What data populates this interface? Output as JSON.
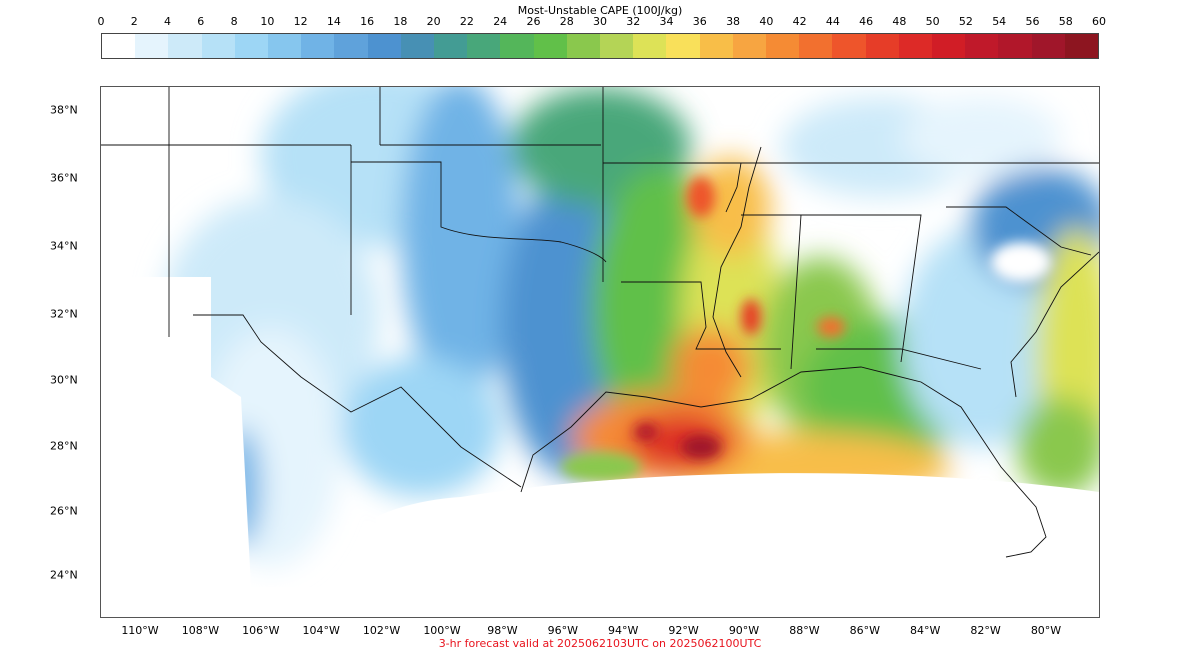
{
  "colorbar": {
    "title": "Most-Unstable CAPE (100J/kg)",
    "ticks": [
      "0",
      "2",
      "4",
      "6",
      "8",
      "10",
      "12",
      "14",
      "16",
      "18",
      "20",
      "22",
      "24",
      "26",
      "28",
      "30",
      "32",
      "34",
      "36",
      "38",
      "40",
      "42",
      "44",
      "46",
      "48",
      "50",
      "52",
      "54",
      "56",
      "58",
      "60"
    ],
    "colors": [
      "#ffffff",
      "#e5f4fd",
      "#cdeaf9",
      "#b6e1f7",
      "#9dd6f5",
      "#86c6ee",
      "#70b3e6",
      "#5fa2db",
      "#4d92d0",
      "#4790b4",
      "#439c94",
      "#48a77a",
      "#54b65a",
      "#61c049",
      "#8ac84d",
      "#b4d456",
      "#dde257",
      "#f9e05a",
      "#f8be48",
      "#f7a541",
      "#f58b34",
      "#f2702f",
      "#ee552b",
      "#e63d28",
      "#dd2a27",
      "#d11d26",
      "#c0192a",
      "#b1172a",
      "#a0162a",
      "#8d1520"
    ]
  },
  "map": {
    "lat_labels": [
      "38°N",
      "36°N",
      "34°N",
      "32°N",
      "30°N",
      "28°N",
      "26°N",
      "24°N"
    ],
    "lon_labels": [
      "110°W",
      "108°W",
      "106°W",
      "104°W",
      "102°W",
      "100°W",
      "98°W",
      "96°W",
      "94°W",
      "92°W",
      "90°W",
      "88°W",
      "86°W",
      "84°W",
      "82°W",
      "80°W"
    ]
  },
  "footer": "3-hr forecast valid at 2025062103UTC on 2025062100UTC"
}
